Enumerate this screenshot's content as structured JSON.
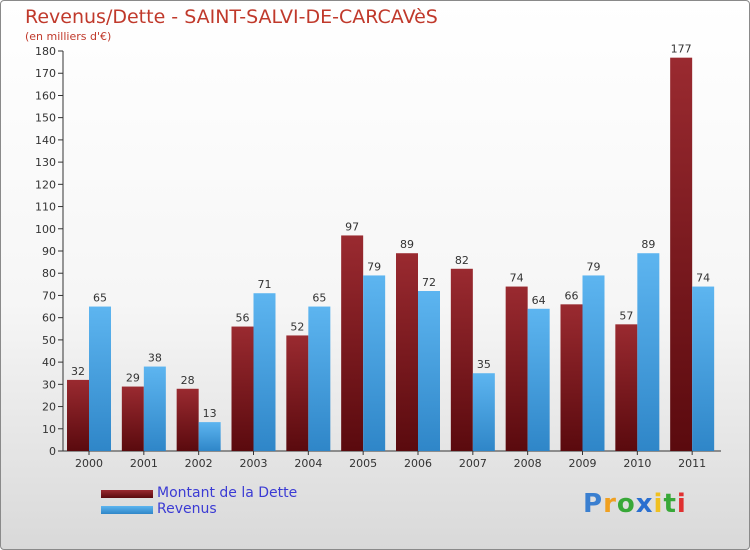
{
  "chart_data": {
    "type": "bar",
    "title": "Revenus/Dette - SAINT-SALVI-DE-CARCAVèS",
    "subtitle": "(en milliers d'€)",
    "xlabel": "",
    "ylabel": "",
    "ylim": [
      0,
      180
    ],
    "ytick_step": 10,
    "grid": false,
    "legend_position": "bottom-left",
    "categories": [
      "2000",
      "2001",
      "2002",
      "2003",
      "2004",
      "2005",
      "2006",
      "2007",
      "2008",
      "2009",
      "2010",
      "2011"
    ],
    "series": [
      {
        "name": "Montant de la Dette",
        "color": "#7b1a1f",
        "values": [
          32,
          29,
          28,
          56,
          52,
          97,
          89,
          82,
          74,
          66,
          57,
          177
        ]
      },
      {
        "name": "Revenus",
        "color": "#4aa3e2",
        "values": [
          65,
          38,
          13,
          71,
          65,
          79,
          72,
          35,
          64,
          79,
          89,
          74
        ]
      }
    ]
  },
  "logo": {
    "letters": [
      "P",
      "r",
      "o",
      "x",
      "i",
      "t",
      "i"
    ],
    "colors": [
      "#3a7fd0",
      "#f0a020",
      "#38a838",
      "#2a6fd0",
      "#f0c020",
      "#38a838",
      "#e03030"
    ]
  }
}
